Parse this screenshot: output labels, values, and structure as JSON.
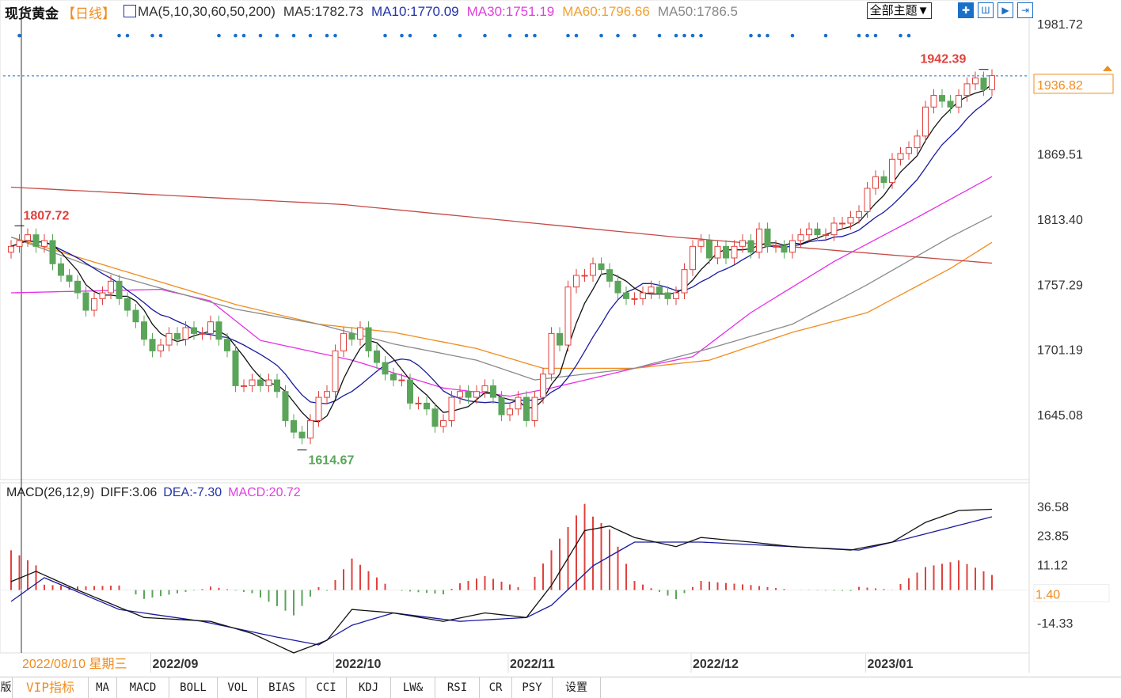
{
  "header": {
    "title": "现货黄金",
    "period": "【日线】",
    "ma_label": "MA(5,10,30,60,50,200)",
    "ma5": "MA5:1782.73",
    "ma10": "MA10:1770.09",
    "ma30": "MA30:1751.19",
    "ma60": "MA60:1796.66",
    "ma50": "MA50:1786.5",
    "theme_button": "全部主题▼",
    "tool_icons": [
      "crosshair-icon",
      "bars-icon",
      "play-icon",
      "goto-end-icon"
    ]
  },
  "colors": {
    "up": "#e0413c",
    "down": "#5aa55a",
    "ma5": "#111111",
    "ma10": "#1a1aa0",
    "ma30": "#e62ee6",
    "ma60": "#f08c1e",
    "ma50": "#8a8a8a",
    "ma200": "#c24a44",
    "dea": "#1a1aa0",
    "diff": "#111111",
    "signal_dots": "#1a6fc9"
  },
  "macd_header": {
    "name": "MACD(26,12,9)",
    "diff": "DIFF:3.06",
    "dea": "DEA:-7.30",
    "macd": "MACD:20.72"
  },
  "cursor_date": "2022/08/10 星期三",
  "tabs": [
    "版",
    "VIP指标",
    "MA",
    "MACD",
    "BOLL",
    "VOL",
    "BIAS",
    "CCI",
    "KDJ",
    "LW&",
    "RSI",
    "CR",
    "PSY",
    "设置"
  ],
  "chart_data": [
    {
      "type": "candlestick",
      "title": "现货黄金",
      "ylim": [
        1592,
        1981.72
      ],
      "y_ticks": [
        "1981.72",
        "1869.51",
        "1813.40",
        "1757.29",
        "1701.19",
        "1645.08"
      ],
      "x_ticks": [
        {
          "label": "2022/09",
          "index": 17
        },
        {
          "label": "2022/10",
          "index": 39
        },
        {
          "label": "2022/11",
          "index": 60
        },
        {
          "label": "2022/12",
          "index": 82
        },
        {
          "label": "2023/01",
          "index": 103
        }
      ],
      "current_price": "1936.82",
      "annotations": [
        {
          "label": "1942.39",
          "index": 117,
          "value": 1942.39
        },
        {
          "label": "1807.72",
          "index": 1,
          "value": 1807.72
        },
        {
          "label": "1614.67",
          "index": 35,
          "value": 1614.67
        }
      ],
      "close": [
        1790,
        1795,
        1800,
        1790,
        1795,
        1775,
        1765,
        1760,
        1750,
        1735,
        1745,
        1750,
        1760,
        1745,
        1735,
        1725,
        1710,
        1700,
        1705,
        1715,
        1710,
        1720,
        1715,
        1715,
        1725,
        1710,
        1700,
        1670,
        1670,
        1675,
        1670,
        1675,
        1665,
        1640,
        1630,
        1625,
        1640,
        1660,
        1665,
        1700,
        1715,
        1710,
        1720,
        1700,
        1690,
        1680,
        1675,
        1675,
        1655,
        1655,
        1650,
        1635,
        1640,
        1660,
        1665,
        1660,
        1665,
        1670,
        1660,
        1645,
        1650,
        1660,
        1640,
        1660,
        1680,
        1715,
        1705,
        1755,
        1765,
        1765,
        1775,
        1770,
        1760,
        1750,
        1745,
        1745,
        1750,
        1755,
        1750,
        1745,
        1750,
        1770,
        1790,
        1795,
        1780,
        1790,
        1780,
        1790,
        1795,
        1785,
        1805,
        1790,
        1790,
        1785,
        1795,
        1800,
        1805,
        1800,
        1800,
        1810,
        1810,
        1815,
        1820,
        1840,
        1850,
        1845,
        1865,
        1870,
        1875,
        1885,
        1910,
        1920,
        1915,
        1910,
        1920,
        1930,
        1935,
        1925,
        1937
      ],
      "ma_lines": {
        "MA30": [
          [
            0,
            1750
          ],
          [
            18,
            1753
          ],
          [
            24,
            1743
          ],
          [
            30,
            1709
          ],
          [
            41,
            1692
          ],
          [
            52,
            1668
          ],
          [
            60,
            1661
          ],
          [
            65,
            1668
          ],
          [
            75,
            1685
          ],
          [
            82,
            1695
          ],
          [
            89,
            1733
          ],
          [
            99,
            1777
          ],
          [
            108,
            1811
          ],
          [
            119,
            1854
          ]
        ],
        "MA60": [
          [
            0,
            1798
          ],
          [
            13,
            1770
          ],
          [
            27,
            1740
          ],
          [
            37,
            1723
          ],
          [
            46,
            1716
          ],
          [
            56,
            1702
          ],
          [
            64,
            1685
          ],
          [
            75,
            1685
          ],
          [
            84,
            1692
          ],
          [
            94,
            1716
          ],
          [
            103,
            1733
          ],
          [
            113,
            1771
          ],
          [
            119,
            1798
          ]
        ],
        "MA50": [
          [
            0,
            1798
          ],
          [
            13,
            1764
          ],
          [
            27,
            1736
          ],
          [
            37,
            1723
          ],
          [
            46,
            1706
          ],
          [
            56,
            1692
          ],
          [
            63,
            1675
          ],
          [
            75,
            1685
          ],
          [
            84,
            1702
          ],
          [
            94,
            1723
          ],
          [
            103,
            1757
          ],
          [
            113,
            1798
          ],
          [
            119,
            1820
          ]
        ],
        "MA200": [
          [
            0,
            1841
          ],
          [
            40,
            1826
          ],
          [
            80,
            1798
          ],
          [
            100,
            1786
          ],
          [
            119,
            1775
          ]
        ]
      },
      "signal_dots": [
        1,
        13,
        14,
        17,
        18,
        25,
        27,
        28,
        30,
        32,
        34,
        36,
        38,
        39,
        45,
        47,
        48,
        51,
        54,
        57,
        60,
        62,
        63,
        67,
        68,
        71,
        73,
        75,
        78,
        80,
        81,
        82,
        83,
        89,
        90,
        91,
        94,
        98,
        102,
        103,
        104,
        107,
        108
      ]
    },
    {
      "type": "macd",
      "ylim": [
        -21,
        38
      ],
      "y_ticks": [
        "36.58",
        "23.85",
        "11.12",
        "-14.33"
      ],
      "current_value": "1.40",
      "diff": [
        [
          0,
          3.7
        ],
        [
          3,
          8.2
        ],
        [
          8,
          0
        ],
        [
          16,
          -12
        ],
        [
          24,
          -13.7
        ],
        [
          29,
          -19
        ],
        [
          34,
          -27.5
        ],
        [
          38,
          -22
        ],
        [
          41,
          -8.5
        ],
        [
          46,
          -10
        ],
        [
          52,
          -13.7
        ],
        [
          57,
          -10
        ],
        [
          62,
          -12
        ],
        [
          65,
          2
        ],
        [
          69,
          26
        ],
        [
          72,
          28
        ],
        [
          75,
          23
        ],
        [
          80,
          19
        ],
        [
          83,
          23
        ],
        [
          89,
          21
        ],
        [
          94,
          19
        ],
        [
          101,
          17.5
        ],
        [
          106,
          21
        ],
        [
          110,
          29.6
        ],
        [
          114,
          34.8
        ],
        [
          119,
          35.5
        ]
      ],
      "dea": [
        [
          0,
          -5
        ],
        [
          4,
          5.4
        ],
        [
          13,
          -8.5
        ],
        [
          23,
          -13.7
        ],
        [
          32,
          -20.6
        ],
        [
          37,
          -24
        ],
        [
          41,
          -15.4
        ],
        [
          46,
          -10
        ],
        [
          54,
          -13.7
        ],
        [
          62,
          -12
        ],
        [
          65,
          -6.7
        ],
        [
          70,
          10.6
        ],
        [
          75,
          21
        ],
        [
          83,
          21
        ],
        [
          94,
          19
        ],
        [
          102,
          17.5
        ],
        [
          108,
          22.7
        ],
        [
          119,
          33
        ]
      ]
    }
  ]
}
